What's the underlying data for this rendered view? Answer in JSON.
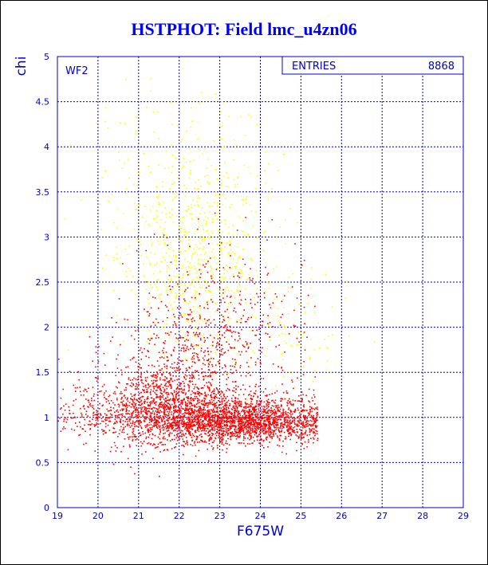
{
  "colors": {
    "frame": "#0000cc",
    "grid": "#0000cc",
    "title": "#0000ff",
    "yellow": "#ffff00",
    "red": "#ff0000"
  },
  "chart_data": {
    "type": "scatter",
    "title": "HSTPHOT: Field lmc_u4zn06",
    "xlabel": "F675W",
    "ylabel": "chi",
    "xlim": [
      19,
      29
    ],
    "ylim": [
      0,
      5
    ],
    "xticks": [
      "19",
      "20",
      "21",
      "22",
      "23",
      "24",
      "25",
      "26",
      "27",
      "28",
      "29"
    ],
    "yticks": [
      "0",
      "0.5",
      "1",
      "1.5",
      "2",
      "2.5",
      "3",
      "3.5",
      "4",
      "4.5",
      "5"
    ],
    "grid": true,
    "panel_label": "WF2",
    "stats_box": {
      "label": "ENTRIES",
      "value": "8868",
      "position": "top-right"
    },
    "series": [
      {
        "color": "#ff0000",
        "count": 8868,
        "density_regions": [
          {
            "x_center": 23.3,
            "x_spread": 1.2,
            "y_center": 0.9,
            "y_spread": 0.16,
            "weight": 0.55
          },
          {
            "x_center": 21.8,
            "x_spread": 0.9,
            "y_center": 1.05,
            "y_spread": 0.35,
            "weight": 0.25
          },
          {
            "x_center": 22.8,
            "x_spread": 1.0,
            "y_center": 1.7,
            "y_spread": 0.55,
            "weight": 0.12
          },
          {
            "x_center": 20.3,
            "x_spread": 0.9,
            "y_center": 0.95,
            "y_spread": 0.22,
            "weight": 0.08
          }
        ],
        "x_max": 25.4
      },
      {
        "color": "#ffff00",
        "density_regions": [
          {
            "x_center": 22.3,
            "x_spread": 0.9,
            "y_center": 2.4,
            "y_spread": 0.7,
            "weight": 0.7
          },
          {
            "x_center": 22.0,
            "x_spread": 1.2,
            "y_center": 3.3,
            "y_spread": 0.6,
            "weight": 0.2
          },
          {
            "x_center": 24.8,
            "x_spread": 0.8,
            "y_center": 1.7,
            "y_spread": 0.5,
            "weight": 0.1
          }
        ]
      }
    ]
  }
}
